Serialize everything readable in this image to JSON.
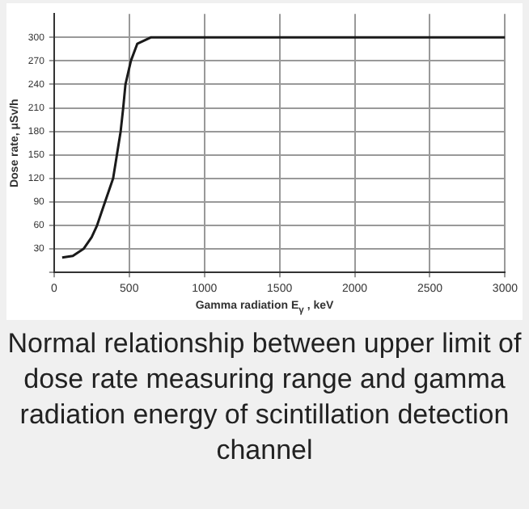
{
  "chart_data": {
    "type": "line",
    "xlabel": "Gamma radiation E$_{γ}$ , keV",
    "ylabel": "Dose rate, μSv/h",
    "series": [
      {
        "color": "#1a1a1a",
        "x": [
          54,
          125,
          196,
          250,
          286,
          339,
          393,
          418,
          443,
          460,
          475,
          511,
          554,
          643,
          3000
        ],
        "values": [
          19,
          21,
          30,
          45,
          60,
          90,
          120,
          150,
          180,
          210,
          240,
          270,
          292,
          300,
          300
        ]
      }
    ],
    "xlim": [
      0,
      3000
    ],
    "xticks": [
      0,
      500,
      1000,
      1500,
      2000,
      2500,
      3000
    ],
    "ylim": [
      0,
      330
    ],
    "yticks": [
      {
        "value": 0,
        "label": null
      },
      30,
      60,
      90,
      120,
      150,
      180,
      210,
      240,
      270,
      300
    ],
    "grid": true,
    "marker": "none",
    "line_style": "solid",
    "legend": false,
    "annotations": [
      "Normal relationship between upper limit of dose rate measuring range and gamma radiation energy of scintillation detection channel"
    ]
  }
}
